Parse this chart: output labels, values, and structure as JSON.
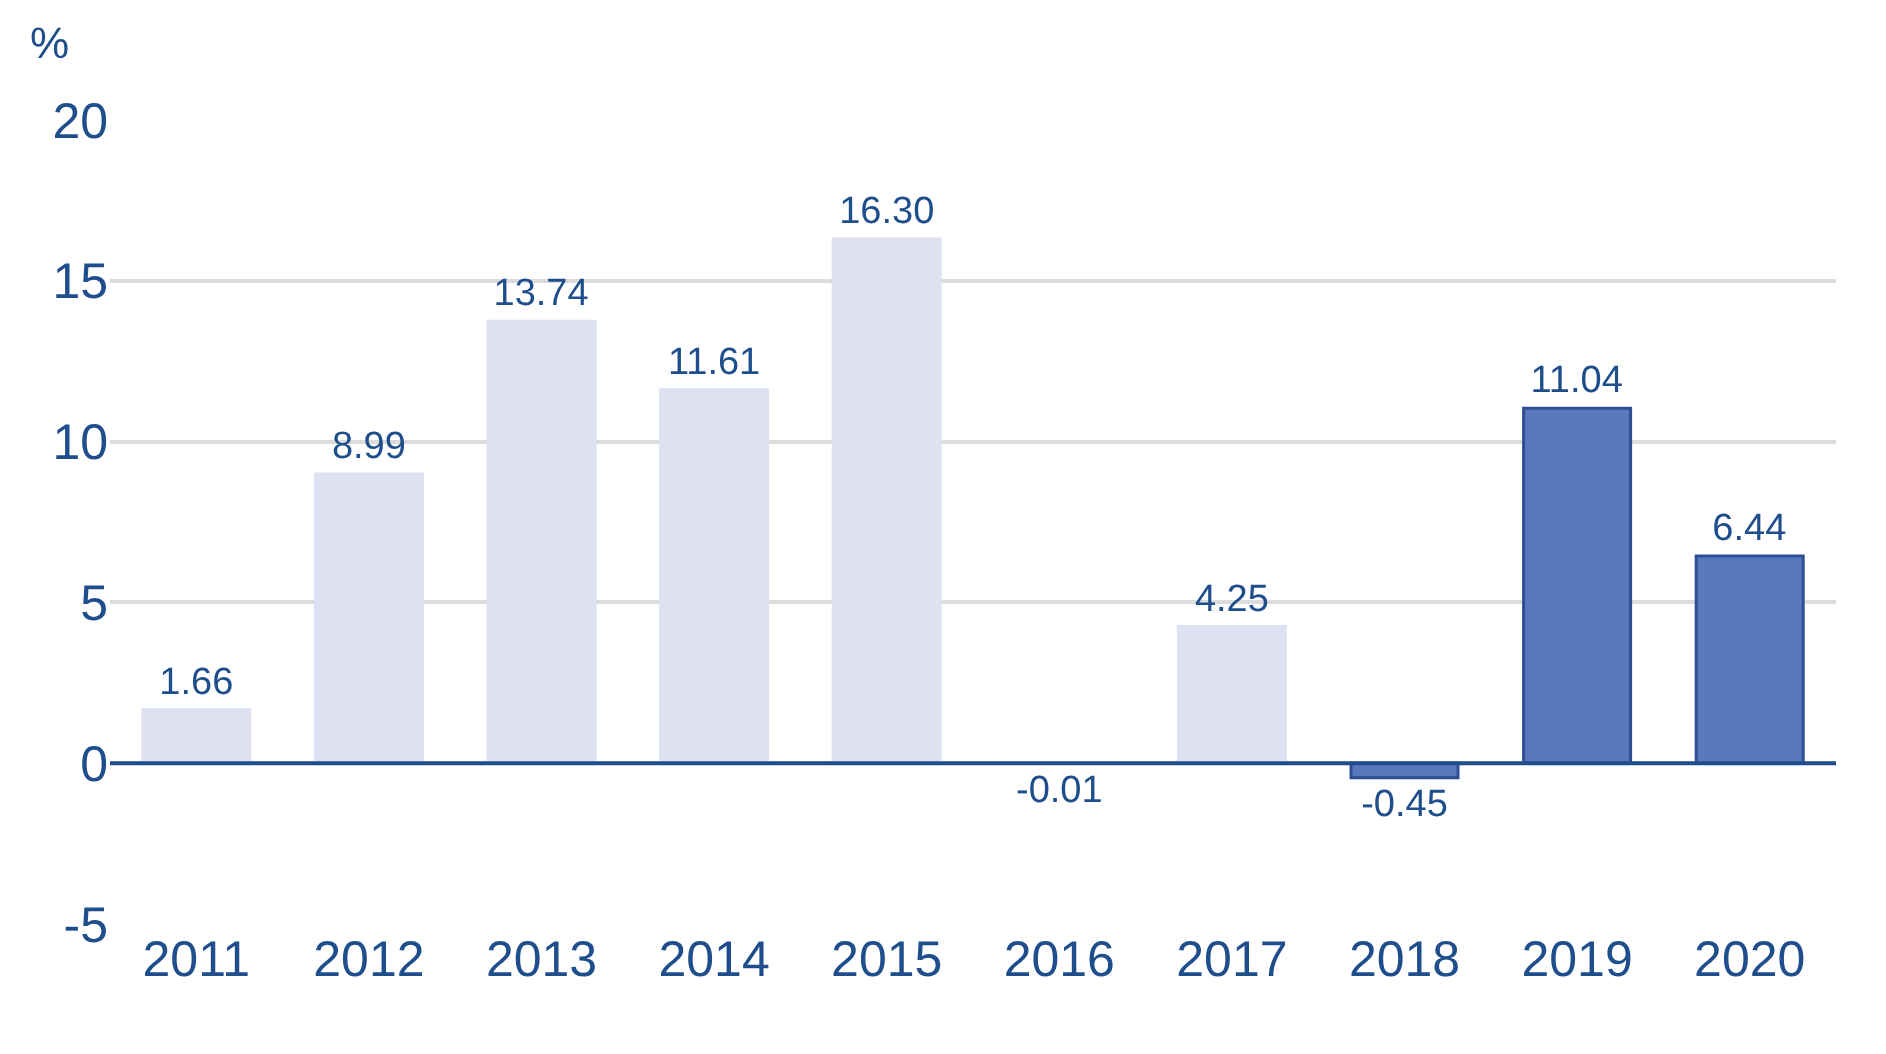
{
  "chart_data": {
    "type": "bar",
    "ylabel": "%",
    "categories": [
      "2011",
      "2012",
      "2013",
      "2014",
      "2015",
      "2016",
      "2017",
      "2018",
      "2019",
      "2020"
    ],
    "values": [
      1.66,
      8.99,
      13.74,
      11.61,
      16.3,
      -0.01,
      4.25,
      -0.45,
      11.04,
      6.44
    ],
    "value_labels": [
      "1.66",
      "8.99",
      "13.74",
      "11.61",
      "16.30",
      "-0.01",
      "4.25",
      "-0.45",
      "11.04",
      "6.44"
    ],
    "colors": [
      "#dde1f2",
      "#dde1f2",
      "#dde1f2",
      "#dde1f2",
      "#dde1f2",
      "#dde1f2",
      "#dde1f2",
      "#5a78be",
      "#5a78be",
      "#5a78be"
    ],
    "ylim": [
      -5,
      20
    ],
    "yticks": [
      -5,
      0,
      5,
      10,
      15,
      20
    ],
    "grid": "y",
    "ref_lines": [
      {
        "axis": "y",
        "value": 0,
        "color": "#1f4e8c"
      }
    ]
  }
}
